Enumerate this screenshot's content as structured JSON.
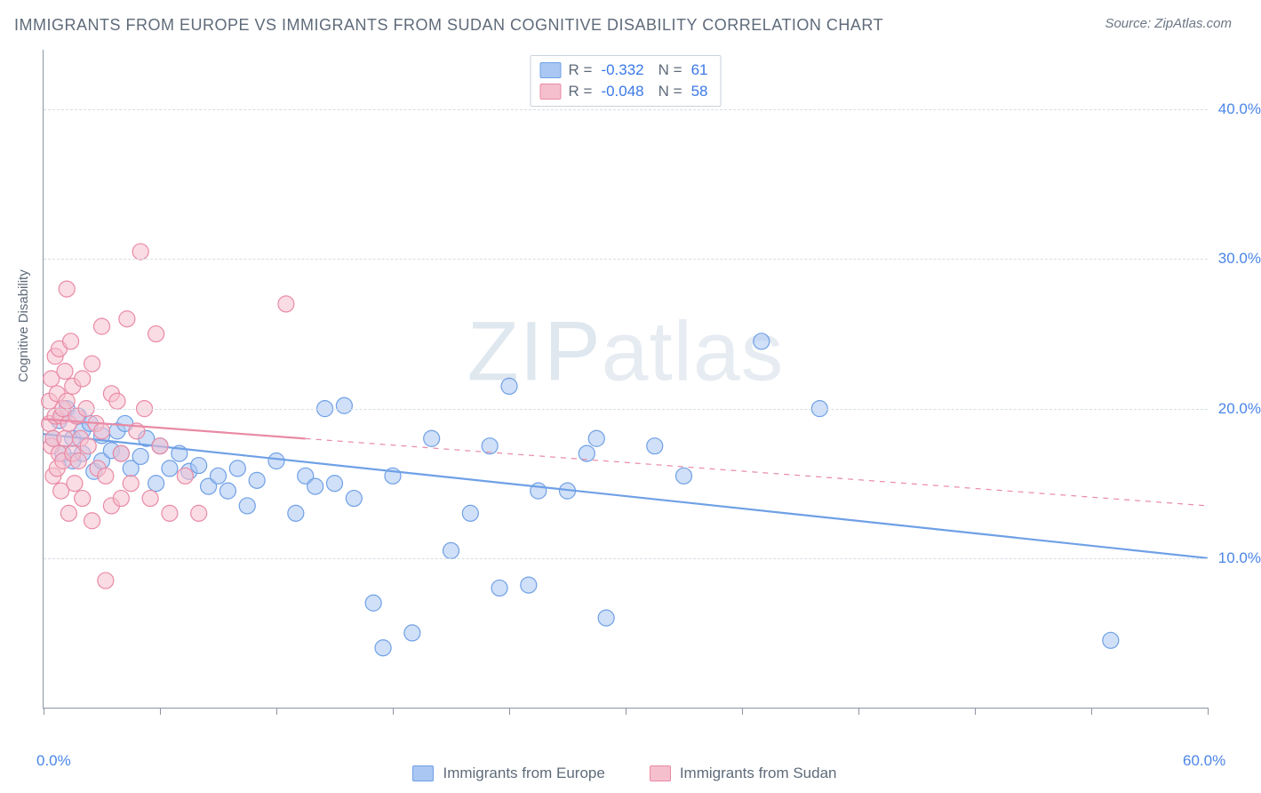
{
  "title": "IMMIGRANTS FROM EUROPE VS IMMIGRANTS FROM SUDAN COGNITIVE DISABILITY CORRELATION CHART",
  "source": "Source: ZipAtlas.com",
  "watermark_a": "ZIP",
  "watermark_b": "atlas",
  "ylabel": "Cognitive Disability",
  "plot": {
    "type": "scatter",
    "background_color": "#ffffff",
    "grid_color": "#d6dde4",
    "axis_color": "#8a96a3",
    "xlim": [
      0,
      60
    ],
    "ylim": [
      0,
      44
    ],
    "x_ticks": [
      0,
      6,
      12,
      18,
      24,
      30,
      36,
      42,
      48,
      54,
      60
    ],
    "x_tick_labels": {
      "0": "0.0%",
      "60": "60.0%"
    },
    "y_ticks": [
      10,
      20,
      30,
      40
    ],
    "y_tick_labels": {
      "10": "10.0%",
      "20": "20.0%",
      "30": "30.0%",
      "40": "40.0%"
    },
    "ytick_color": "#4a86e8",
    "xtick_color": "#4a86e8",
    "marker_radius": 9,
    "marker_opacity": 0.55,
    "line_width": 2.2,
    "series": [
      {
        "key": "europe",
        "label": "Immigrants from Europe",
        "color_fill": "#a9c7f2",
        "color_stroke": "#6fa0e6",
        "r_label": "R =",
        "r_value": "-0.332",
        "n_label": "N =",
        "n_value": "61",
        "regression": {
          "x1": 0,
          "y1": 18.3,
          "x2": 60,
          "y2": 10.0,
          "dashed_from_x": null
        },
        "points": [
          [
            0.5,
            18.0
          ],
          [
            0.8,
            19.2
          ],
          [
            1.0,
            17.0
          ],
          [
            1.2,
            20.0
          ],
          [
            1.5,
            18.0
          ],
          [
            1.5,
            16.5
          ],
          [
            1.8,
            19.5
          ],
          [
            2.0,
            18.5
          ],
          [
            2.0,
            17.0
          ],
          [
            2.4,
            19.0
          ],
          [
            2.6,
            15.8
          ],
          [
            3.0,
            18.2
          ],
          [
            3.0,
            16.5
          ],
          [
            3.5,
            17.2
          ],
          [
            3.8,
            18.5
          ],
          [
            4.0,
            17.0
          ],
          [
            4.2,
            19.0
          ],
          [
            4.5,
            16.0
          ],
          [
            5.0,
            16.8
          ],
          [
            5.3,
            18.0
          ],
          [
            5.8,
            15.0
          ],
          [
            6.0,
            17.5
          ],
          [
            6.5,
            16.0
          ],
          [
            7.0,
            17.0
          ],
          [
            7.5,
            15.8
          ],
          [
            8.0,
            16.2
          ],
          [
            8.5,
            14.8
          ],
          [
            9.0,
            15.5
          ],
          [
            9.5,
            14.5
          ],
          [
            10.0,
            16.0
          ],
          [
            10.5,
            13.5
          ],
          [
            11.0,
            15.2
          ],
          [
            12.0,
            16.5
          ],
          [
            13.0,
            13.0
          ],
          [
            13.5,
            15.5
          ],
          [
            14.0,
            14.8
          ],
          [
            14.5,
            20.0
          ],
          [
            15.0,
            15.0
          ],
          [
            15.5,
            20.2
          ],
          [
            16.0,
            14.0
          ],
          [
            17.0,
            7.0
          ],
          [
            18.0,
            15.5
          ],
          [
            17.5,
            4.0
          ],
          [
            19.0,
            5.0
          ],
          [
            20.0,
            18.0
          ],
          [
            21.0,
            10.5
          ],
          [
            22.0,
            13.0
          ],
          [
            23.0,
            17.5
          ],
          [
            23.5,
            8.0
          ],
          [
            24.0,
            21.5
          ],
          [
            25.0,
            8.2
          ],
          [
            25.5,
            14.5
          ],
          [
            27.0,
            14.5
          ],
          [
            28.0,
            17.0
          ],
          [
            28.5,
            18.0
          ],
          [
            29.0,
            6.0
          ],
          [
            31.5,
            17.5
          ],
          [
            33.0,
            15.5
          ],
          [
            37.0,
            24.5
          ],
          [
            40.0,
            20.0
          ],
          [
            55.0,
            4.5
          ]
        ]
      },
      {
        "key": "sudan",
        "label": "Immigrants from Sudan",
        "color_fill": "#f5bfcd",
        "color_stroke": "#e98aa5",
        "r_label": "R =",
        "r_value": "-0.048",
        "n_label": "N =",
        "n_value": "58",
        "regression": {
          "x1": 0,
          "y1": 19.3,
          "x2": 60,
          "y2": 13.5,
          "dashed_from_x": 13.5
        },
        "points": [
          [
            0.3,
            19.0
          ],
          [
            0.3,
            20.5
          ],
          [
            0.4,
            17.5
          ],
          [
            0.4,
            22.0
          ],
          [
            0.5,
            18.0
          ],
          [
            0.5,
            15.5
          ],
          [
            0.6,
            23.5
          ],
          [
            0.6,
            19.5
          ],
          [
            0.7,
            16.0
          ],
          [
            0.7,
            21.0
          ],
          [
            0.8,
            24.0
          ],
          [
            0.8,
            17.0
          ],
          [
            0.9,
            19.5
          ],
          [
            0.9,
            14.5
          ],
          [
            1.0,
            20.0
          ],
          [
            1.0,
            16.5
          ],
          [
            1.1,
            22.5
          ],
          [
            1.1,
            18.0
          ],
          [
            1.2,
            20.5
          ],
          [
            1.3,
            13.0
          ],
          [
            1.3,
            19.0
          ],
          [
            1.4,
            24.5
          ],
          [
            1.5,
            17.0
          ],
          [
            1.5,
            21.5
          ],
          [
            1.6,
            15.0
          ],
          [
            1.7,
            19.5
          ],
          [
            1.8,
            16.5
          ],
          [
            1.9,
            18.0
          ],
          [
            2.0,
            22.0
          ],
          [
            2.0,
            14.0
          ],
          [
            2.2,
            20.0
          ],
          [
            2.3,
            17.5
          ],
          [
            2.5,
            23.0
          ],
          [
            2.5,
            12.5
          ],
          [
            2.7,
            19.0
          ],
          [
            2.8,
            16.0
          ],
          [
            3.0,
            25.5
          ],
          [
            3.0,
            18.5
          ],
          [
            3.2,
            15.5
          ],
          [
            3.5,
            21.0
          ],
          [
            3.5,
            13.5
          ],
          [
            3.8,
            20.5
          ],
          [
            4.0,
            17.0
          ],
          [
            4.3,
            26.0
          ],
          [
            4.5,
            15.0
          ],
          [
            4.8,
            18.5
          ],
          [
            5.0,
            30.5
          ],
          [
            5.2,
            20.0
          ],
          [
            5.5,
            14.0
          ],
          [
            5.8,
            25.0
          ],
          [
            6.0,
            17.5
          ],
          [
            1.2,
            28.0
          ],
          [
            3.2,
            8.5
          ],
          [
            4.0,
            14.0
          ],
          [
            6.5,
            13.0
          ],
          [
            7.3,
            15.5
          ],
          [
            8.0,
            13.0
          ],
          [
            12.5,
            27.0
          ]
        ]
      }
    ]
  }
}
